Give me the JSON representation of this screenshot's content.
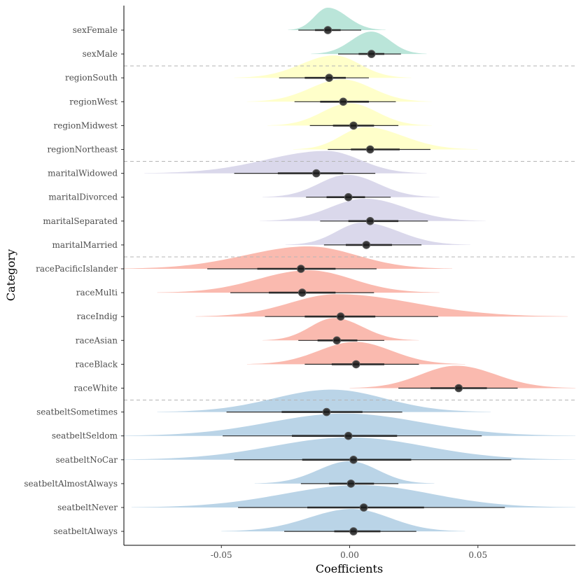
{
  "chart_data": {
    "type": "interval-density",
    "xlabel": "Coefficients",
    "ylabel": "Category",
    "xlim": [
      -0.088,
      0.088
    ],
    "x_ticks": [
      -0.05,
      0,
      0.05
    ],
    "x_tick_labels": [
      "-0.05",
      "0.00",
      "0.05"
    ],
    "grid": false,
    "separator_lines_after": [
      "sexMale",
      "regionNortheast",
      "maritalMarried",
      "raceWhite"
    ],
    "groups": [
      {
        "name": "sex",
        "color": "#b3e2d5"
      },
      {
        "name": "region",
        "color": "#ffffc4"
      },
      {
        "name": "marital",
        "color": "#d6d4e9"
      },
      {
        "name": "race",
        "color": "#f9b2a6"
      },
      {
        "name": "seatbelt",
        "color": "#b2cfe4"
      }
    ],
    "rows": [
      {
        "label": "sexFemale",
        "group": "sex",
        "median": -0.0085,
        "inner": [
          -0.0135,
          -0.0035
        ],
        "outer": [
          -0.02,
          0.0045
        ],
        "density_range": [
          -0.024,
          0.014
        ],
        "density_peak": -0.0085
      },
      {
        "label": "sexMale",
        "group": "sex",
        "median": 0.0085,
        "inner": [
          0.0035,
          0.0135
        ],
        "outer": [
          -0.0045,
          0.02
        ],
        "density_range": [
          -0.015,
          0.03
        ],
        "density_peak": 0.0085
      },
      {
        "label": "regionSouth",
        "group": "region",
        "median": -0.008,
        "inner": [
          -0.0175,
          -0.0015
        ],
        "outer": [
          -0.0275,
          0.0075
        ],
        "density_range": [
          -0.045,
          0.024
        ],
        "density_peak": -0.006
      },
      {
        "label": "regionWest",
        "group": "region",
        "median": -0.0025,
        "inner": [
          -0.0115,
          0.0075
        ],
        "outer": [
          -0.0215,
          0.018
        ],
        "density_range": [
          -0.04,
          0.032
        ],
        "density_peak": -0.003
      },
      {
        "label": "regionMidwest",
        "group": "region",
        "median": 0.0015,
        "inner": [
          -0.0065,
          0.0095
        ],
        "outer": [
          -0.0155,
          0.019
        ],
        "density_range": [
          -0.032,
          0.032
        ],
        "density_peak": 0.0
      },
      {
        "label": "regionNortheast",
        "group": "region",
        "median": 0.008,
        "inner": [
          0.0005,
          0.0195
        ],
        "outer": [
          -0.0085,
          0.0315
        ],
        "density_range": [
          -0.022,
          0.05
        ],
        "density_peak": 0.006
      },
      {
        "label": "maritalWidowed",
        "group": "marital",
        "median": -0.013,
        "inner": [
          -0.028,
          -0.0025
        ],
        "outer": [
          -0.045,
          0.01
        ],
        "density_range": [
          -0.08,
          0.03
        ],
        "density_peak": -0.009
      },
      {
        "label": "maritalDivorced",
        "group": "marital",
        "median": -0.0005,
        "inner": [
          -0.009,
          0.006
        ],
        "outer": [
          -0.017,
          0.016
        ],
        "density_range": [
          -0.034,
          0.035
        ],
        "density_peak": -0.001
      },
      {
        "label": "maritalSeparated",
        "group": "marital",
        "median": 0.008,
        "inner": [
          -0.0005,
          0.019
        ],
        "outer": [
          -0.0115,
          0.0305
        ],
        "density_range": [
          -0.035,
          0.053
        ],
        "density_peak": 0.006
      },
      {
        "label": "maritalMarried",
        "group": "marital",
        "median": 0.0065,
        "inner": [
          -0.0015,
          0.0165
        ],
        "outer": [
          -0.01,
          0.028
        ],
        "density_range": [
          -0.025,
          0.047
        ],
        "density_peak": 0.005
      },
      {
        "label": "racePacificIslander",
        "group": "race",
        "median": -0.019,
        "inner": [
          -0.036,
          -0.0055
        ],
        "outer": [
          -0.0555,
          0.0105
        ],
        "density_range": [
          -0.09,
          0.04
        ],
        "density_peak": -0.016
      },
      {
        "label": "raceMulti",
        "group": "race",
        "median": -0.0185,
        "inner": [
          -0.0315,
          -0.0055
        ],
        "outer": [
          -0.0465,
          0.0095
        ],
        "density_range": [
          -0.075,
          0.035
        ],
        "density_peak": -0.016
      },
      {
        "label": "raceIndig",
        "group": "race",
        "median": -0.0035,
        "inner": [
          -0.0175,
          0.01
        ],
        "outer": [
          -0.033,
          0.0345
        ],
        "density_range": [
          -0.06,
          0.085
        ],
        "density_peak": -0.005
      },
      {
        "label": "raceAsian",
        "group": "race",
        "median": -0.005,
        "inner": [
          -0.0125,
          0.003
        ],
        "outer": [
          -0.02,
          0.0135
        ],
        "density_range": [
          -0.034,
          0.027
        ],
        "density_peak": -0.006
      },
      {
        "label": "raceBlack",
        "group": "race",
        "median": 0.0025,
        "inner": [
          -0.007,
          0.0135
        ],
        "outer": [
          -0.0175,
          0.027
        ],
        "density_range": [
          -0.04,
          0.045
        ],
        "density_peak": 0.002
      },
      {
        "label": "raceWhite",
        "group": "race",
        "median": 0.0425,
        "inner": [
          0.0315,
          0.0535
        ],
        "outer": [
          0.019,
          0.0655
        ],
        "density_range": [
          0.0,
          0.088
        ],
        "density_peak": 0.0415
      },
      {
        "label": "seatbeltSometimes",
        "group": "seatbelt",
        "median": -0.009,
        "inner": [
          -0.0265,
          0.005
        ],
        "outer": [
          -0.048,
          0.0205
        ],
        "density_range": [
          -0.075,
          0.055
        ],
        "density_peak": -0.007
      },
      {
        "label": "seatbeltSeldom",
        "group": "seatbelt",
        "median": -0.0005,
        "inner": [
          -0.0225,
          0.0185
        ],
        "outer": [
          -0.0495,
          0.0515
        ],
        "density_range": [
          -0.09,
          0.088
        ],
        "density_peak": -0.002
      },
      {
        "label": "seatbeltNoCar",
        "group": "seatbelt",
        "median": 0.0015,
        "inner": [
          -0.0185,
          0.024
        ],
        "outer": [
          -0.045,
          0.063
        ],
        "density_range": [
          -0.09,
          0.088
        ],
        "density_peak": 0.0
      },
      {
        "label": "seatbeltAlmostAlways",
        "group": "seatbelt",
        "median": 0.0005,
        "inner": [
          -0.008,
          0.0095
        ],
        "outer": [
          -0.019,
          0.019
        ],
        "density_range": [
          -0.037,
          0.033
        ],
        "density_peak": 0.0
      },
      {
        "label": "seatbeltNever",
        "group": "seatbelt",
        "median": 0.0055,
        "inner": [
          -0.0165,
          0.029
        ],
        "outer": [
          -0.0435,
          0.0605
        ],
        "density_range": [
          -0.085,
          0.088
        ],
        "density_peak": 0.004
      },
      {
        "label": "seatbeltAlways",
        "group": "seatbelt",
        "median": 0.0015,
        "inner": [
          -0.006,
          0.012
        ],
        "outer": [
          -0.0255,
          0.026
        ],
        "density_range": [
          -0.05,
          0.045
        ],
        "density_peak": 0.001
      }
    ]
  }
}
